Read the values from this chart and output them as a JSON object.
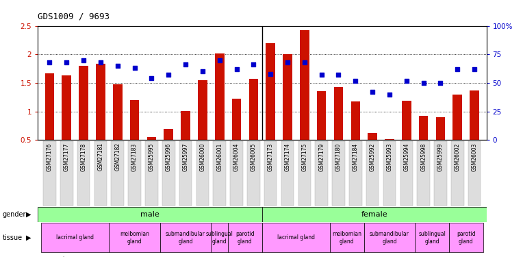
{
  "title": "GDS1009 / 9693",
  "samples": [
    "GSM27176",
    "GSM27177",
    "GSM27178",
    "GSM27181",
    "GSM27182",
    "GSM27183",
    "GSM25995",
    "GSM25996",
    "GSM25997",
    "GSM26000",
    "GSM26001",
    "GSM26004",
    "GSM26005",
    "GSM27173",
    "GSM27174",
    "GSM27175",
    "GSM27179",
    "GSM27180",
    "GSM27184",
    "GSM25992",
    "GSM25993",
    "GSM25994",
    "GSM25998",
    "GSM25999",
    "GSM26002",
    "GSM26003"
  ],
  "bar_values": [
    1.67,
    1.63,
    1.8,
    1.84,
    1.47,
    1.2,
    0.55,
    0.7,
    1.01,
    1.55,
    2.01,
    1.22,
    1.57,
    2.2,
    2.0,
    2.42,
    1.35,
    1.43,
    1.18,
    0.62,
    0.52,
    1.19,
    0.92,
    0.9,
    1.3,
    1.37
  ],
  "pct_values": [
    68,
    68,
    70,
    68,
    65,
    63,
    54,
    57,
    66,
    60,
    70,
    62,
    66,
    58,
    68,
    68,
    57,
    57,
    52,
    42,
    40,
    52,
    50,
    50,
    62,
    62
  ],
  "bar_color": "#cc1100",
  "dot_color": "#0000cc",
  "ylim_left": [
    0.5,
    2.5
  ],
  "ylim_right": [
    0,
    100
  ],
  "yticks_left": [
    0.5,
    1.0,
    1.5,
    2.0,
    2.5
  ],
  "yticks_right": [
    0,
    25,
    50,
    75,
    100
  ],
  "ytick_labels_left": [
    "0.5",
    "1",
    "1.5",
    "2",
    "2.5"
  ],
  "ytick_labels_right": [
    "0",
    "25",
    "50",
    "75",
    "100%"
  ],
  "gender_male_samples": 13,
  "gender_female_samples": 13,
  "tissue_male": [
    {
      "label": "lacrimal gland",
      "span": 4
    },
    {
      "label": "meibomian\ngland",
      "span": 3
    },
    {
      "label": "submandibular\ngland",
      "span": 3
    },
    {
      "label": "sublingual\ngland",
      "span": 1
    },
    {
      "label": "parotid\ngland",
      "span": 2
    }
  ],
  "tissue_female": [
    {
      "label": "lacrimal gland",
      "span": 4
    },
    {
      "label": "meibomian\ngland",
      "span": 2
    },
    {
      "label": "submandibular\ngland",
      "span": 3
    },
    {
      "label": "sublingual\ngland",
      "span": 2
    },
    {
      "label": "parotid\ngland",
      "span": 2
    }
  ],
  "gender_color": "#99ff99",
  "tissue_color": "#ff99ff",
  "background_color": "#ffffff",
  "tick_label_color_left": "#cc1100",
  "tick_label_color_right": "#0000cc"
}
